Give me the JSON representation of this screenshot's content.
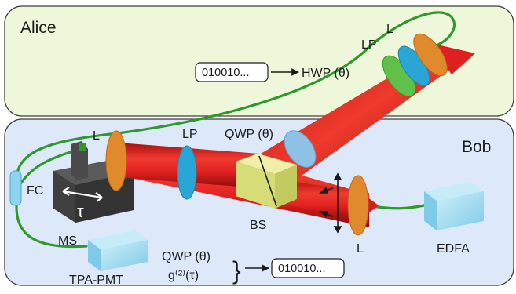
{
  "panels": {
    "alice_label": "Alice",
    "bob_label": "Bob"
  },
  "alice": {
    "bit_string": "010010...",
    "hwp_label": "HWP (θ)",
    "lp_label": "LP",
    "lens_label": "L"
  },
  "bob": {
    "lens_left_label": "L",
    "lp_label": "LP",
    "qwp_label": "QWP (θ)",
    "bs_label": "BS",
    "lens_right_label": "L",
    "fc_label": "FC",
    "ms_label": "MS",
    "tau_symbol": "τ",
    "edfa_label": "EDFA",
    "tpa_label": "TPA-PMT",
    "result_qwp": "QWP (θ)",
    "result_g2": "g⁽²⁾(τ)",
    "bit_string": "010010..."
  },
  "colors": {
    "alice_bg": "#eef7d9",
    "bob_bg": "#dde9f8",
    "fiber": "#2f9a2c",
    "beam": "#d81c1c",
    "lens": "#e08a2c",
    "polarizer_lp": "#2aa6d6",
    "qwp": "#8ec1e6",
    "hwp": "#5fc04a",
    "beamsplitter": "#dfe389",
    "stage": "#4a4a4a",
    "device": "#9fdcf2"
  }
}
